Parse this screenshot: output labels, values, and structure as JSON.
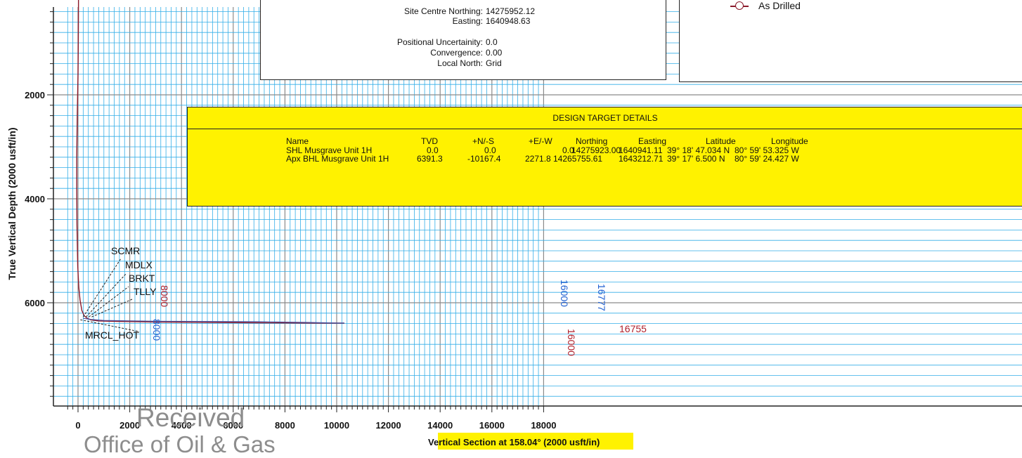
{
  "chart_data": {
    "type": "line",
    "xlabel": "Vertical Section at 158.04° (2000 usft/in)",
    "ylabel": "True Vertical Depth (2000 usft/in)",
    "xlim": [
      -500,
      18000
    ],
    "ylim": [
      -100,
      7900
    ],
    "x_ticks": [
      0,
      2000,
      4000,
      6000,
      8000,
      10000,
      12000,
      14000,
      16000,
      18000
    ],
    "x_tick_labels": [
      "0",
      "2000",
      "4000",
      "6000",
      "8000",
      "10000",
      "12000",
      "14000",
      "16000",
      "18000"
    ],
    "y_ticks": [
      2000,
      4000,
      6000
    ],
    "y_tick_labels": [
      "2000",
      "4000",
      "6000"
    ],
    "grid": true,
    "series": [
      {
        "name": "As Drilled",
        "color": "#8b1a2b",
        "x": [
          20,
          15,
          10,
          0,
          -30,
          -50,
          -50,
          -40,
          -10,
          30,
          80,
          150,
          240,
          360,
          500,
          800,
          1500,
          3000,
          5000,
          7000,
          9000,
          10000,
          10300
        ],
        "y": [
          -50,
          500,
          1000,
          1600,
          2400,
          3200,
          3800,
          4500,
          5300,
          5700,
          5950,
          6150,
          6250,
          6300,
          6330,
          6350,
          6360,
          6370,
          6380,
          6385,
          6390,
          6392,
          6393
        ]
      },
      {
        "name": "",
        "color": "#4a4f9c",
        "x": [
          200,
          500,
          1000,
          3000,
          5000,
          7000,
          9000,
          10000,
          10300
        ],
        "y": [
          6300,
          6320,
          6340,
          6355,
          6360,
          6365,
          6380,
          6391,
          6391
        ]
      }
    ],
    "annotations": {
      "formations": [
        "SCMR",
        "MDLX",
        "BRKT",
        "TLLY",
        "MRCL_HOT"
      ],
      "md_markers": [
        "8000",
        "8000",
        "16000",
        "16000",
        "16777",
        "16755"
      ]
    }
  },
  "site_box": {
    "rows": [
      {
        "label": "Site Centre Northing:",
        "value": "14275952.12"
      },
      {
        "label": "Easting:",
        "value": "1640948.63"
      },
      {
        "label": "Positional Uncertainity:",
        "value": "0.0"
      },
      {
        "label": "Convergence:",
        "value": "0.00"
      },
      {
        "label": "Local North:",
        "value": "Grid"
      }
    ]
  },
  "legend": {
    "entries": [
      {
        "label": "As Drilled",
        "color": "#8b1a2b"
      }
    ]
  },
  "target_details": {
    "title": "DESIGN TARGET DETAILS",
    "headers": [
      "Name",
      "TVD",
      "+N/-S",
      "+E/-W",
      "Northing",
      "Easting",
      "Latitude",
      "Longitude"
    ],
    "rows": [
      [
        "SHL Musgrave Unit 1H",
        "0.0",
        "0.0",
        "0.0",
        "14275923.00",
        "1640941.11",
        "39° 18' 47.034 N",
        "80° 59' 53.325 W"
      ],
      [
        "Apx BHL Musgrave Unit 1H",
        "6391.3",
        "-10167.4",
        "2271.8",
        "14265755.61",
        "1643212.71",
        "39° 17' 6.500 N",
        "80° 59' 24.427 W"
      ]
    ]
  },
  "stamp": {
    "line1": "Received",
    "line2": "Office of Oil & Gas"
  },
  "colors": {
    "grid_minor": "#33aee8",
    "grid_major": "#8a8a8a",
    "highlight": "#fff200",
    "as_drilled": "#8b1a2b",
    "plan": "#4a4f9c",
    "md_blue": "#1f5fd0",
    "md_red": "#b0202c"
  }
}
